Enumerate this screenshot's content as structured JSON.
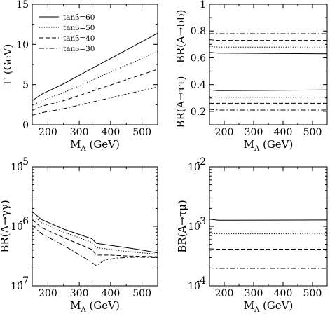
{
  "chart_data": [
    {
      "type": "line",
      "panel": "top-left",
      "xlabel": "M_A (GeV)",
      "ylabel": "Γ (GeV)",
      "xlim": [
        150,
        550
      ],
      "ylim": [
        0,
        15
      ],
      "xscale": "linear",
      "yscale": "linear",
      "xticks": [
        200,
        300,
        400,
        500
      ],
      "yticks": [
        0,
        5,
        10,
        15
      ],
      "xtick_labels": [
        "200",
        "300",
        "400",
        "500"
      ],
      "ytick_labels": [
        "0",
        "5",
        "10",
        "15"
      ],
      "legend": "top-left",
      "series": [
        {
          "name": "tanβ=60",
          "style": "solid",
          "x": [
            150,
            180,
            250,
            350,
            450,
            550
          ],
          "y": [
            3.0,
            3.8,
            5.1,
            7.2,
            9.3,
            11.4
          ]
        },
        {
          "name": "tanβ=50",
          "style": "dotted",
          "x": [
            150,
            180,
            250,
            350,
            450,
            550
          ],
          "y": [
            2.4,
            3.0,
            4.0,
            5.7,
            7.4,
            9.1
          ]
        },
        {
          "name": "tanβ=40",
          "style": "dashed",
          "x": [
            150,
            180,
            250,
            350,
            450,
            550
          ],
          "y": [
            1.8,
            2.3,
            3.0,
            4.3,
            5.6,
            6.9
          ]
        },
        {
          "name": "tanβ=30",
          "style": "dashdot",
          "x": [
            150,
            180,
            250,
            350,
            450,
            550
          ],
          "y": [
            1.2,
            1.5,
            2.0,
            2.9,
            3.8,
            4.7
          ]
        }
      ]
    },
    {
      "type": "line",
      "panel": "top-right",
      "xlabel": "M_A (GeV)",
      "ylabel": "BR(A→bb)",
      "ylabel2": "BR(A→ττ)",
      "xlim": [
        150,
        550
      ],
      "ylim": [
        0.1,
        1.0
      ],
      "xscale": "linear",
      "yscale": "linear",
      "xticks": [
        200,
        300,
        400,
        500
      ],
      "yticks": [
        0.2,
        0.4,
        0.6,
        0.8,
        1.0
      ],
      "xtick_labels": [
        "200",
        "300",
        "400",
        "500"
      ],
      "ytick_labels": [
        "0.2",
        "0.4",
        "0.6",
        "0.8",
        "1"
      ],
      "series": [
        {
          "name": "tanβ=60",
          "style": "solid",
          "x": [
            150,
            180,
            550
          ],
          "y": [
            0.64,
            0.635,
            0.63
          ]
        },
        {
          "name": "tanβ=50",
          "style": "dotted",
          "x": [
            150,
            180,
            550
          ],
          "y": [
            0.685,
            0.68,
            0.68
          ]
        },
        {
          "name": "tanβ=40",
          "style": "dashed",
          "x": [
            150,
            180,
            550
          ],
          "y": [
            0.735,
            0.73,
            0.73
          ]
        },
        {
          "name": "tanβ=30",
          "style": "dashdot",
          "x": [
            150,
            180,
            550
          ],
          "y": [
            0.78,
            0.78,
            0.78
          ]
        },
        {
          "name": "tanβ=60",
          "style": "solid",
          "x": [
            150,
            180,
            550
          ],
          "y": [
            0.36,
            0.355,
            0.36
          ]
        },
        {
          "name": "tanβ=50",
          "style": "dotted",
          "x": [
            150,
            180,
            550
          ],
          "y": [
            0.31,
            0.305,
            0.305
          ]
        },
        {
          "name": "tanβ=40",
          "style": "dashed",
          "x": [
            150,
            180,
            550
          ],
          "y": [
            0.26,
            0.26,
            0.26
          ]
        },
        {
          "name": "tanβ=30",
          "style": "dashdot",
          "x": [
            150,
            180,
            550
          ],
          "y": [
            0.215,
            0.21,
            0.21
          ]
        }
      ]
    },
    {
      "type": "line",
      "panel": "bottom-left",
      "xlabel": "M_A (GeV)",
      "ylabel": "BR(A→γγ)",
      "xlim": [
        150,
        550
      ],
      "ylim": [
        1e-07,
        1e-05
      ],
      "xscale": "linear",
      "yscale": "log",
      "xticks": [
        200,
        300,
        400,
        500
      ],
      "yticks": [
        1e-07,
        1e-06,
        1e-05
      ],
      "xtick_labels": [
        "200",
        "300",
        "400",
        "500"
      ],
      "ytick_labels": [
        "10",
        "10",
        "10"
      ],
      "ytick_exponents": [
        "-7",
        "-6",
        "-5"
      ],
      "series": [
        {
          "name": "tanβ=60",
          "style": "solid",
          "x": [
            150,
            180,
            250,
            340,
            355,
            400,
            450,
            500,
            550
          ],
          "y": [
            1.75e-06,
            1.3e-06,
            9e-07,
            6.2e-07,
            5.2e-07,
            4.8e-07,
            4.4e-07,
            4e-07,
            3.6e-07
          ]
        },
        {
          "name": "tanβ=50",
          "style": "dotted",
          "x": [
            150,
            180,
            250,
            340,
            355,
            400,
            450,
            500,
            550
          ],
          "y": [
            1.55e-06,
            1.15e-06,
            8e-07,
            5.4e-07,
            4.4e-07,
            4.1e-07,
            3.8e-07,
            3.6e-07,
            3.4e-07
          ]
        },
        {
          "name": "tanβ=40",
          "style": "dashed",
          "x": [
            150,
            180,
            250,
            340,
            355,
            400,
            450,
            500,
            550
          ],
          "y": [
            1.3e-06,
            9.5e-07,
            6.5e-07,
            4.1e-07,
            3.3e-07,
            3.3e-07,
            3.2e-07,
            3.15e-07,
            3.1e-07
          ]
        },
        {
          "name": "tanβ=30",
          "style": "dashdot",
          "x": [
            150,
            180,
            250,
            320,
            355,
            380,
            420,
            480,
            550
          ],
          "y": [
            1.05e-06,
            7.5e-07,
            4.8e-07,
            2.9e-07,
            2.2e-07,
            2.7e-07,
            2.95e-07,
            3.05e-07,
            3e-07
          ]
        }
      ]
    },
    {
      "type": "line",
      "panel": "bottom-right",
      "xlabel": "M_A (GeV)",
      "ylabel": "BR(A→τμ)",
      "xlim": [
        150,
        550
      ],
      "ylim": [
        0.0001,
        0.01
      ],
      "xscale": "linear",
      "yscale": "log",
      "xticks": [
        200,
        300,
        400,
        500
      ],
      "yticks": [
        0.0001,
        0.001,
        0.01
      ],
      "xtick_labels": [
        "200",
        "300",
        "400",
        "500"
      ],
      "ytick_labels": [
        "10",
        "10",
        "10"
      ],
      "ytick_exponents": [
        "-4",
        "-3",
        "-2"
      ],
      "series": [
        {
          "name": "tanβ=60",
          "style": "solid",
          "x": [
            150,
            180,
            550
          ],
          "y": [
            0.00132,
            0.00127,
            0.00128
          ]
        },
        {
          "name": "tanβ=50",
          "style": "dotted",
          "x": [
            150,
            180,
            550
          ],
          "y": [
            0.00076,
            0.00075,
            0.00075
          ]
        },
        {
          "name": "tanβ=40",
          "style": "dashed",
          "x": [
            150,
            180,
            550
          ],
          "y": [
            0.00042,
            0.000415,
            0.000415
          ]
        },
        {
          "name": "tanβ=30",
          "style": "dashdot",
          "x": [
            150,
            180,
            550
          ],
          "y": [
            0.0002,
            0.000197,
            0.000197
          ]
        }
      ]
    }
  ]
}
